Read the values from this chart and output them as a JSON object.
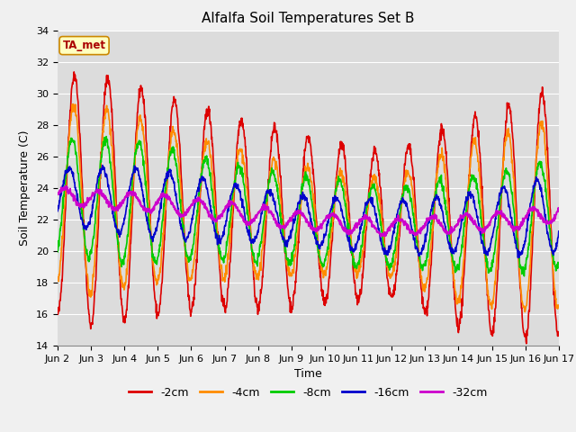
{
  "title": "Alfalfa Soil Temperatures Set B",
  "xlabel": "Time",
  "ylabel": "Soil Temperature (C)",
  "ylim": [
    14,
    34
  ],
  "xlim": [
    0,
    15
  ],
  "x_tick_labels": [
    "Jun 2",
    "Jun 3",
    "Jun 4",
    "Jun 5",
    "Jun 6",
    "Jun 7",
    "Jun 8",
    "Jun 9",
    "Jun 10",
    "Jun 11",
    "Jun 12",
    "Jun 13",
    "Jun 14",
    "Jun 15",
    "Jun 16",
    "Jun 17"
  ],
  "series_labels": [
    "-2cm",
    "-4cm",
    "-8cm",
    "-16cm",
    "-32cm"
  ],
  "series_colors": [
    "#dd0000",
    "#ff8c00",
    "#00cc00",
    "#0000cc",
    "#cc00cc"
  ],
  "line_widths": [
    1.2,
    1.2,
    1.2,
    1.2,
    1.5
  ],
  "plot_bg_color": "#dcdcdc",
  "fig_bg_color": "#f0f0f0",
  "annotation_text": "TA_met",
  "annotation_box_facecolor": "#ffffc0",
  "annotation_box_edgecolor": "#cc8800",
  "annotation_text_color": "#aa0000",
  "grid_color": "#ffffff",
  "title_fontsize": 11,
  "tick_fontsize": 8,
  "label_fontsize": 9,
  "legend_fontsize": 9,
  "yticks": [
    14,
    16,
    18,
    20,
    22,
    24,
    26,
    28,
    30,
    32,
    34
  ]
}
